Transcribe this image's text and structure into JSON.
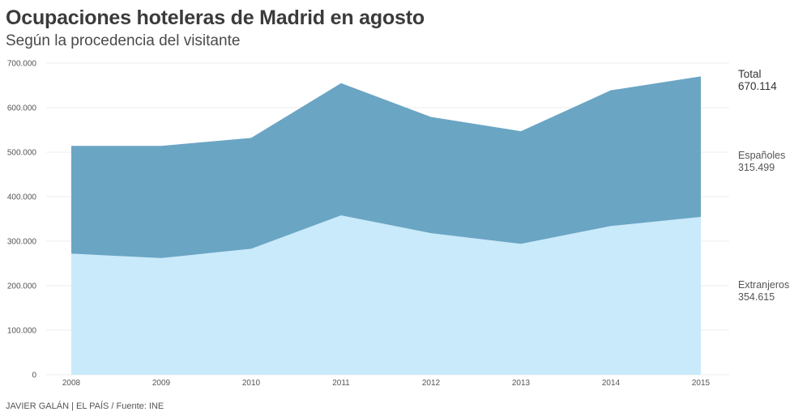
{
  "header": {
    "title": "Ocupaciones hoteleras de Madrid en agosto",
    "subtitle": "Según la procedencia del visitante"
  },
  "source": "JAVIER GALÁN | EL PAÍS / Fuente: INE",
  "chart_data": {
    "type": "area",
    "stacked": true,
    "title": "Ocupaciones hoteleras de Madrid en agosto",
    "subtitle": "Según la procedencia del visitante",
    "x": [
      "2008",
      "2009",
      "2010",
      "2011",
      "2012",
      "2013",
      "2014",
      "2015"
    ],
    "ylim": [
      0,
      700000
    ],
    "yticks": [
      0,
      100000,
      200000,
      300000,
      400000,
      500000,
      600000,
      700000
    ],
    "ytick_labels": [
      "0",
      "100.000",
      "200.000",
      "300.000",
      "400.000",
      "500.000",
      "600.000",
      "700.000"
    ],
    "grid": true,
    "series": [
      {
        "name": "Extranjeros",
        "color": "#c9eafb",
        "values": [
          272000,
          262000,
          283000,
          358000,
          318000,
          294000,
          334000,
          354615
        ],
        "end_label": "354.615"
      },
      {
        "name": "Españoles",
        "color": "#6aa5c4",
        "values": [
          242000,
          252000,
          249000,
          297000,
          261000,
          253000,
          305000,
          315499
        ],
        "end_label": "315.499"
      }
    ],
    "total": {
      "name": "Total",
      "values": [
        514000,
        514000,
        532000,
        655000,
        579000,
        547000,
        639000,
        670114
      ],
      "end_label": "670.114"
    }
  }
}
